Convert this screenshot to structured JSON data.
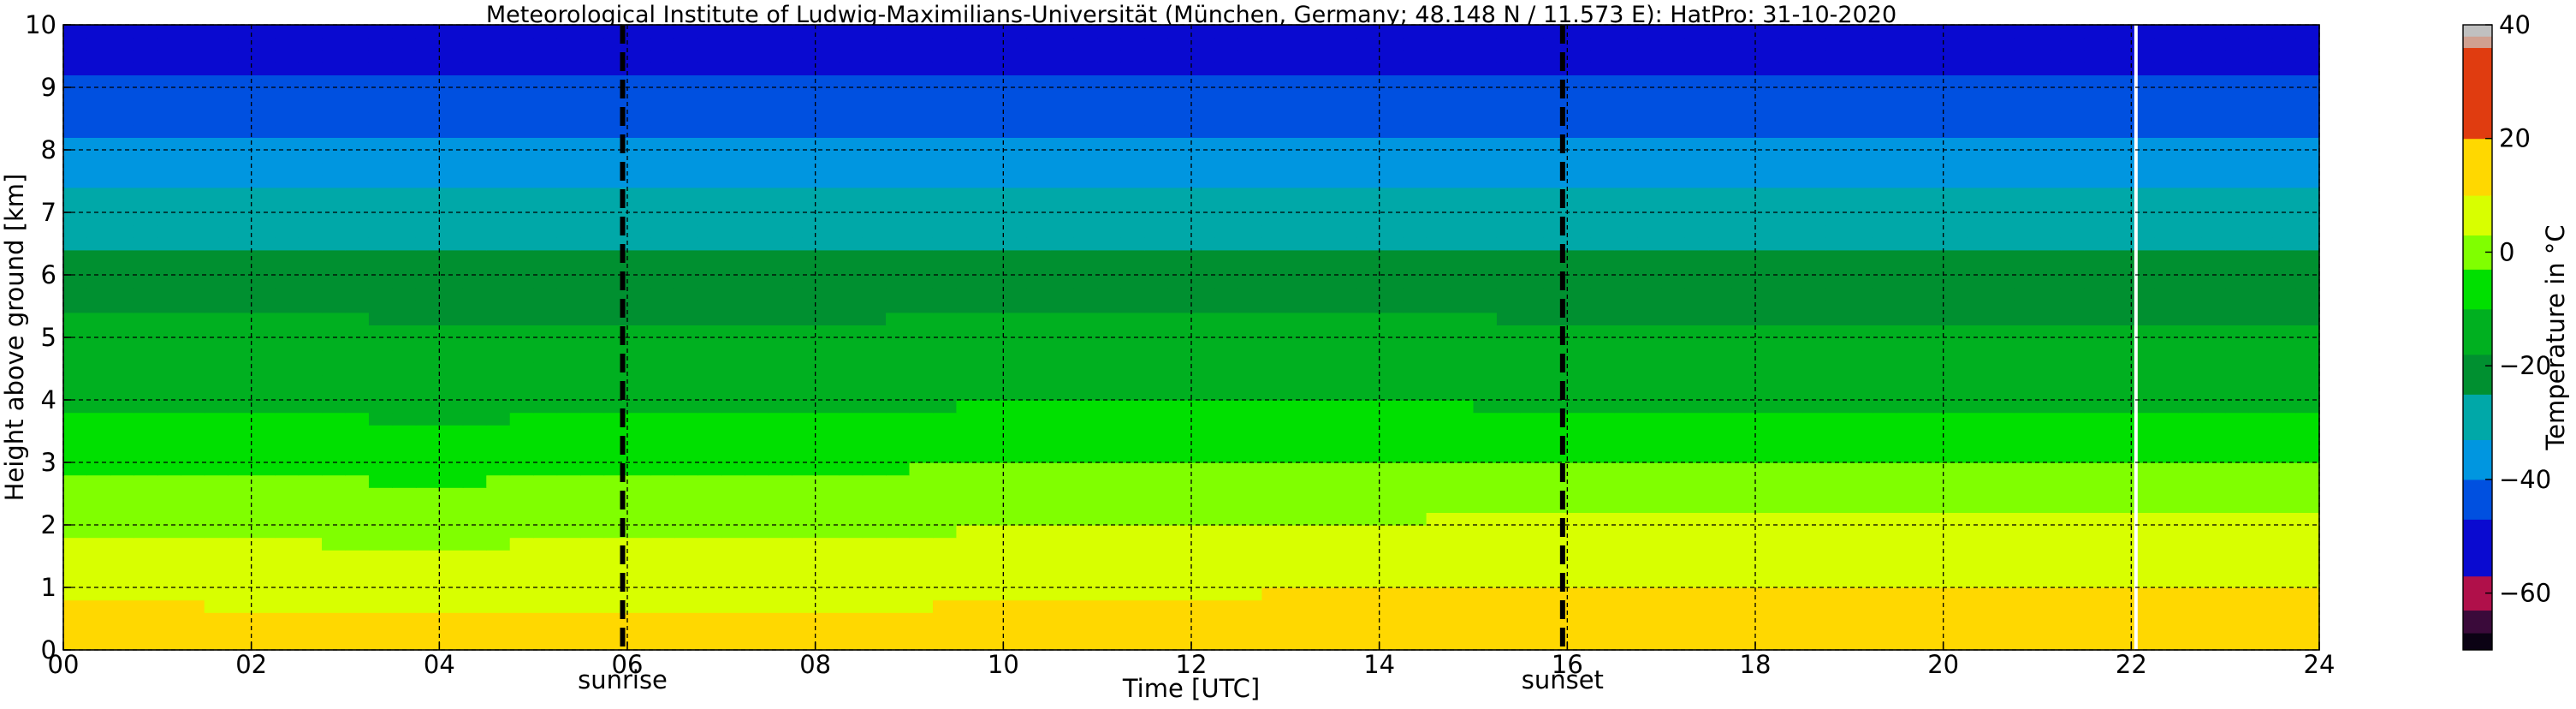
{
  "chart_data": {
    "type": "heatmap",
    "title": "Meteorological Institute of Ludwig-Maximilians-Universität (München, Germany; 48.148 N / 11.573 E):    HatPro: 31-10-2020",
    "xlabel": "Time [UTC]",
    "ylabel": "Height above ground [km]",
    "xlim": [
      0,
      24
    ],
    "ylim": [
      0,
      10
    ],
    "x_ticks": [
      "00",
      "02",
      "04",
      "06",
      "08",
      "10",
      "12",
      "14",
      "16",
      "18",
      "20",
      "22",
      "24"
    ],
    "y_ticks": [
      "0",
      "1",
      "2",
      "3",
      "4",
      "5",
      "6",
      "7",
      "8",
      "9",
      "10"
    ],
    "grid": true,
    "colorbar": {
      "label": "Temperature in $^\\circ$C",
      "range": [
        -70,
        40
      ],
      "ticks": [
        "-60",
        "-40",
        "-20",
        "0",
        "20",
        "40"
      ],
      "colors": [
        {
          "from": -70,
          "to": -67,
          "color": "#0b0214"
        },
        {
          "from": -67,
          "to": -63,
          "color": "#3a0a3a"
        },
        {
          "from": -63,
          "to": -57,
          "color": "#b0104a"
        },
        {
          "from": -57,
          "to": -47,
          "color": "#0a0ad0"
        },
        {
          "from": -47,
          "to": -40,
          "color": "#0050e0"
        },
        {
          "from": -40,
          "to": -33,
          "color": "#0096e0"
        },
        {
          "from": -33,
          "to": -25,
          "color": "#00a8a8"
        },
        {
          "from": -25,
          "to": -18,
          "color": "#009030"
        },
        {
          "from": -18,
          "to": -10,
          "color": "#00b020"
        },
        {
          "from": -10,
          "to": -3,
          "color": "#00e000"
        },
        {
          "from": -3,
          "to": 3,
          "color": "#80ff00"
        },
        {
          "from": 3,
          "to": 10,
          "color": "#d8ff00"
        },
        {
          "from": 10,
          "to": 20,
          "color": "#ffd800"
        },
        {
          "from": 20,
          "to": 36,
          "color": "#e03c10"
        },
        {
          "from": 36,
          "to": 38,
          "color": "#d0a090"
        },
        {
          "from": 38,
          "to": 40,
          "color": "#c0c0c0"
        }
      ]
    },
    "vlines": [
      {
        "x": 5.95,
        "label": "sunrise",
        "style": "dashed"
      },
      {
        "x": 15.95,
        "label": "sunset",
        "style": "dashed"
      }
    ],
    "data_gap_at_hour": 22.05,
    "temperature_profile": {
      "height_km": [
        0,
        0.5,
        1,
        1.5,
        2,
        2.5,
        3,
        3.5,
        4,
        4.5,
        5,
        5.5,
        6,
        6.5,
        7,
        7.5,
        8,
        8.5,
        9,
        9.5,
        10
      ],
      "time_utc_h": [
        0,
        4,
        8,
        12,
        16,
        20,
        24
      ],
      "temperature_c": [
        [
          14,
          13,
          13,
          17,
          17,
          16,
          16
        ],
        [
          12,
          11,
          11,
          13,
          14,
          13,
          13
        ],
        [
          8,
          7,
          7,
          9,
          10,
          10,
          10
        ],
        [
          5,
          4,
          5,
          6,
          7,
          7,
          7
        ],
        [
          1,
          1,
          2,
          3,
          4,
          4,
          4
        ],
        [
          -1,
          -2,
          0,
          0,
          1,
          1,
          1
        ],
        [
          -4,
          -5,
          -4,
          -3,
          -3,
          -3,
          -3
        ],
        [
          -8,
          -9,
          -8,
          -7,
          -7,
          -7,
          -7
        ],
        [
          -11,
          -12,
          -11,
          -10,
          -11,
          -11,
          -11
        ],
        [
          -13,
          -14,
          -14,
          -13,
          -14,
          -14,
          -14
        ],
        [
          -16,
          -17,
          -17,
          -16,
          -17,
          -17,
          -17
        ],
        [
          -18,
          -19,
          -19,
          -18,
          -19,
          -19,
          -19
        ],
        [
          -22,
          -22,
          -22,
          -22,
          -22,
          -22,
          -22
        ],
        [
          -25,
          -26,
          -26,
          -26,
          -26,
          -26,
          -26
        ],
        [
          -30,
          -30,
          -30,
          -30,
          -30,
          -30,
          -30
        ],
        [
          -34,
          -34,
          -34,
          -34,
          -34,
          -34,
          -34
        ],
        [
          -38,
          -38,
          -38,
          -38,
          -38,
          -38,
          -38
        ],
        [
          -42,
          -42,
          -42,
          -42,
          -42,
          -42,
          -42
        ],
        [
          -46,
          -46,
          -46,
          -46,
          -46,
          -46,
          -46
        ],
        [
          -51,
          -51,
          -51,
          -51,
          -51,
          -51,
          -51
        ],
        [
          -55,
          -55,
          -55,
          -55,
          -55,
          -55,
          -55
        ]
      ]
    }
  }
}
